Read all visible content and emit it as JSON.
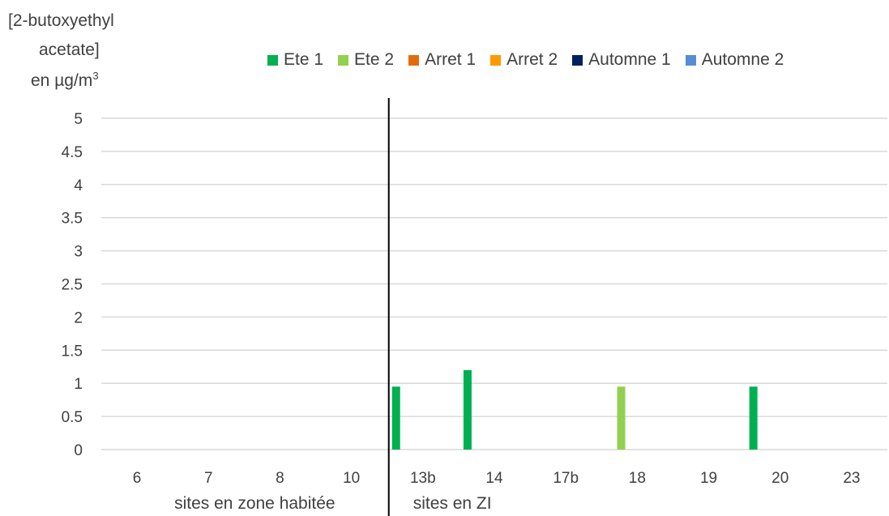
{
  "chart_data": {
    "type": "bar",
    "ylabel_lines": [
      "[2-butoxyethyl",
      "acetate]",
      "en µg/m",
      "3"
    ],
    "ylim": [
      0,
      5
    ],
    "yticks": [
      "0",
      "0.5",
      "1",
      "1.5",
      "2",
      "2.5",
      "3",
      "3.5",
      "4",
      "4.5",
      "5"
    ],
    "categories": [
      "6",
      "7",
      "8",
      "10",
      "13b",
      "14",
      "17b",
      "18",
      "19",
      "20",
      "23"
    ],
    "group_labels": [
      "sites en zone habitée",
      "sites en ZI"
    ],
    "grid": true,
    "legend_position": "top",
    "series": [
      {
        "name": "Ete 1",
        "color": "#00b050",
        "values": [
          0,
          0,
          0,
          0,
          0.95,
          1.2,
          0,
          0,
          0,
          0.95,
          0
        ]
      },
      {
        "name": "Ete 2",
        "color": "#92d050",
        "values": [
          0,
          0,
          0,
          0,
          0,
          0,
          0,
          0.95,
          0,
          0,
          0
        ]
      },
      {
        "name": "Arret 1",
        "color": "#e36c0a",
        "values": [
          0,
          0,
          0,
          0,
          0,
          0,
          0,
          0,
          0,
          0,
          0
        ]
      },
      {
        "name": "Arret 2",
        "color": "#ff9900",
        "values": [
          0,
          0,
          0,
          0,
          0,
          0,
          0,
          0,
          0,
          0,
          0
        ]
      },
      {
        "name": "Automne 1",
        "color": "#002060",
        "values": [
          0,
          0,
          0,
          0,
          0,
          0,
          0,
          0,
          0,
          0,
          0
        ]
      },
      {
        "name": "Automne 2",
        "color": "#558ed5",
        "values": [
          0,
          0,
          0,
          0,
          0,
          0,
          0,
          0,
          0,
          0,
          0
        ]
      }
    ]
  }
}
